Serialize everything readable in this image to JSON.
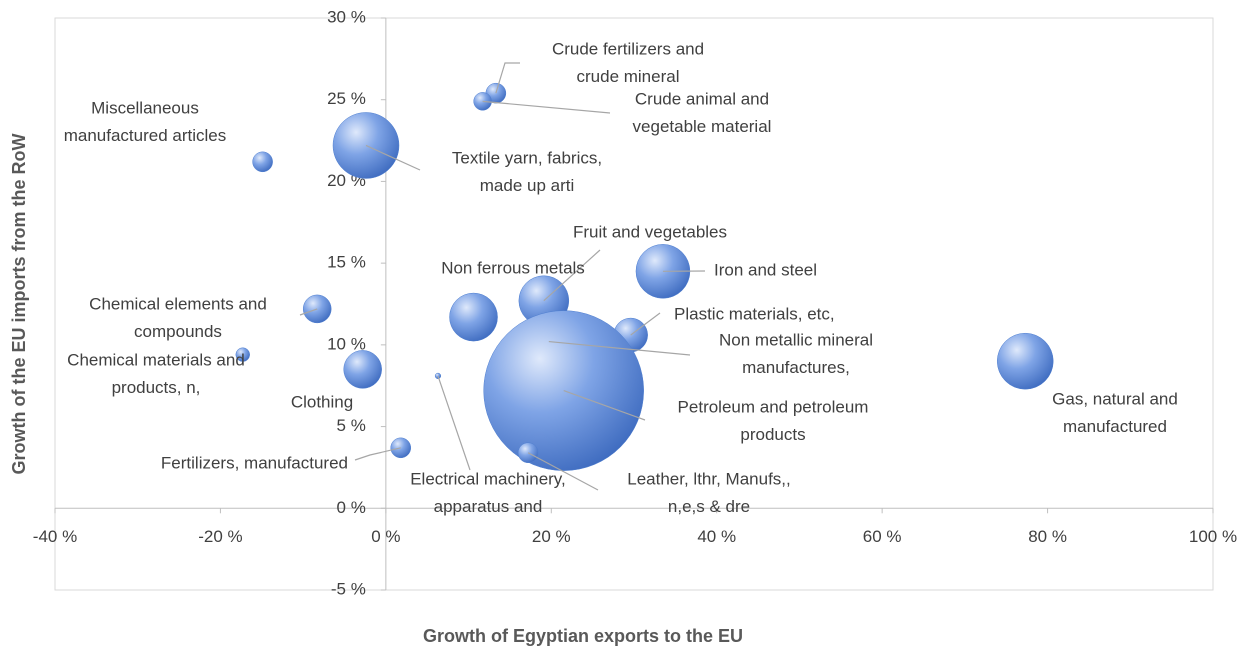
{
  "chart_data": {
    "type": "bubble",
    "x_label": "Growth of Egyptian exports to the EU",
    "y_label": "Growth of the EU imports from the RoW",
    "xlim": [
      -40,
      100
    ],
    "ylim": [
      -5,
      30
    ],
    "xticks": [
      {
        "value": -40,
        "label": "-40 %"
      },
      {
        "value": -20,
        "label": "-20 %"
      },
      {
        "value": 0,
        "label": "0 %"
      },
      {
        "value": 20,
        "label": "20 %"
      },
      {
        "value": 40,
        "label": "40 %"
      },
      {
        "value": 60,
        "label": "60 %"
      },
      {
        "value": 80,
        "label": "80 %"
      },
      {
        "value": 100,
        "label": "100 %"
      }
    ],
    "yticks": [
      {
        "value": -5,
        "label": "-5 %"
      },
      {
        "value": 0,
        "label": "0 %"
      },
      {
        "value": 5,
        "label": "5 %"
      },
      {
        "value": 10,
        "label": "10 %"
      },
      {
        "value": 15,
        "label": "15 %"
      },
      {
        "value": 20,
        "label": "20 %"
      },
      {
        "value": 25,
        "label": "25 %"
      },
      {
        "value": 30,
        "label": "30 %"
      }
    ],
    "grid": false,
    "color": "#4f7fd0",
    "labels": [
      [
        "Miscellaneous",
        "manufactured articles"
      ],
      [
        "Textile yarn, fabrics,",
        "made up arti"
      ],
      [
        "Crude fertilizers and",
        "crude mineral"
      ],
      [
        "Crude animal and",
        "vegetable material"
      ],
      [
        "Fruit and vegetables"
      ],
      [
        "Non ferrous metals"
      ],
      [
        "Iron and steel"
      ],
      [
        "Plastic materials, etc,"
      ],
      [
        "Non metallic mineral",
        "manufactures,"
      ],
      [
        "Petroleum and petroleum",
        "products"
      ],
      [
        "Gas, natural and",
        "manufactured"
      ],
      [
        "Chemical elements and",
        "compounds"
      ],
      [
        "Chemical materials and",
        "products, n,"
      ],
      [
        "Clothing"
      ],
      [
        "Electrical machinery,",
        "apparatus and"
      ],
      [
        "Fertilizers, manufactured"
      ],
      [
        "Leather, lthr, Manufs,,",
        "n,e,s & dre"
      ]
    ],
    "x": [
      -14.9,
      -2.4,
      13.3,
      11.7,
      19.1,
      10.6,
      33.5,
      29.6,
      19.7,
      21.5,
      77.3,
      -8.3,
      -17.3,
      -2.8,
      6.3,
      1.8,
      17.2
    ],
    "y": [
      21.2,
      22.2,
      25.4,
      24.9,
      12.7,
      11.7,
      14.5,
      10.6,
      10.2,
      7.2,
      9.0,
      12.2,
      9.4,
      8.5,
      8.1,
      3.7,
      3.4
    ],
    "size": [
      25,
      272,
      25,
      20,
      156,
      144,
      182,
      72,
      56,
      1600,
      196,
      49,
      12,
      90,
      2,
      25,
      25
    ]
  }
}
